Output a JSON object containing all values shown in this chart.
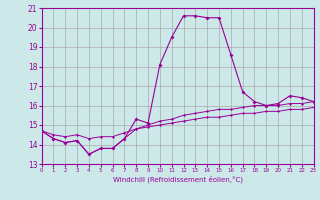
{
  "title": "",
  "xlabel": "Windchill (Refroidissement éolien,°C)",
  "background_color": "#cce8e8",
  "grid_color": "#aaaaaa",
  "line_color": "#990099",
  "x_hours": [
    0,
    1,
    2,
    3,
    4,
    5,
    6,
    7,
    8,
    9,
    10,
    11,
    12,
    13,
    14,
    15,
    16,
    17,
    18,
    19,
    20,
    21,
    22,
    23
  ],
  "windchill": [
    14.7,
    14.3,
    14.1,
    14.2,
    13.5,
    13.8,
    13.8,
    14.3,
    15.3,
    15.1,
    18.1,
    19.5,
    20.6,
    20.6,
    20.5,
    20.5,
    18.6,
    16.7,
    16.2,
    16.0,
    16.1,
    16.5,
    16.4,
    16.2
  ],
  "line2": [
    14.7,
    14.3,
    14.1,
    14.2,
    13.5,
    13.8,
    13.8,
    14.3,
    14.8,
    15.0,
    15.2,
    15.3,
    15.5,
    15.6,
    15.7,
    15.8,
    15.8,
    15.9,
    16.0,
    16.0,
    16.0,
    16.1,
    16.1,
    16.2
  ],
  "line3": [
    14.7,
    14.5,
    14.4,
    14.5,
    14.3,
    14.4,
    14.4,
    14.6,
    14.8,
    14.9,
    15.0,
    15.1,
    15.2,
    15.3,
    15.4,
    15.4,
    15.5,
    15.6,
    15.6,
    15.7,
    15.7,
    15.8,
    15.8,
    15.9
  ],
  "ylim": [
    13,
    21
  ],
  "xlim": [
    0,
    23
  ],
  "yticks": [
    13,
    14,
    15,
    16,
    17,
    18,
    19,
    20,
    21
  ],
  "xtick_labels": [
    "0",
    "1",
    "2",
    "3",
    "4",
    "5",
    "6",
    "7",
    "8",
    "9",
    "10",
    "11",
    "12",
    "13",
    "14",
    "15",
    "16",
    "17",
    "18",
    "19",
    "20",
    "21",
    "22",
    "23"
  ]
}
